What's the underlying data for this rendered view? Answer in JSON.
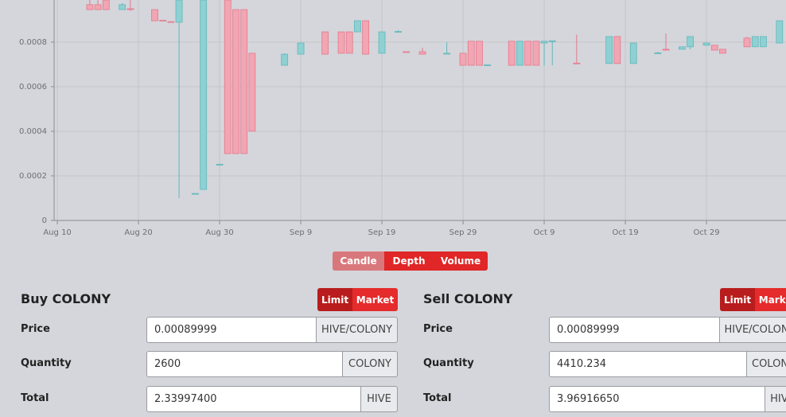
{
  "chart_data": {
    "type": "candlestick",
    "x": [
      4,
      5,
      6,
      8,
      9,
      12,
      13,
      14,
      15,
      17,
      18,
      20,
      21,
      22,
      23,
      24,
      28,
      30,
      33,
      35,
      36,
      37,
      38,
      40,
      42,
      43,
      45,
      48,
      50,
      51,
      52,
      53,
      56,
      57,
      58,
      59,
      60,
      61,
      64,
      68,
      69,
      71,
      74,
      75,
      77,
      78,
      80,
      81,
      82,
      85,
      86,
      87,
      89
    ],
    "open": [
      0.000968,
      0.000968,
      0.000989,
      0.000946,
      0.00095,
      0.000946,
      0.000898,
      0.000892,
      0.000889,
      0.000118,
      0.000139,
      0.00025,
      0.000989,
      0.000946,
      0.000946,
      0.00075,
      0.000696,
      0.000746,
      0.000846,
      0.000846,
      0.000846,
      0.000846,
      0.000896,
      0.00075,
      0.000846,
      0.000757,
      0.000757,
      0.00075,
      0.00075,
      0.000804,
      0.000804,
      0.000696,
      0.000804,
      0.000696,
      0.000804,
      0.000804,
      0.000796,
      0.000804,
      0.000706,
      0.000704,
      0.000825,
      0.000704,
      0.00075,
      0.000768,
      0.000768,
      0.000779,
      0.000786,
      0.000786,
      0.000768,
      0.000818,
      0.000779,
      0.000779,
      0.000796
    ],
    "high": [
      0.000989,
      0.000989,
      0.000989,
      0.000975,
      0.000989,
      0.000946,
      0.000898,
      0.000892,
      0.000989,
      0.000121,
      0.000989,
      0.000252,
      0.000989,
      0.000946,
      0.000946,
      0.00075,
      0.00075,
      0.000796,
      0.000846,
      0.000846,
      0.000846,
      0.000896,
      0.000896,
      0.000846,
      0.000854,
      0.000757,
      0.000775,
      0.0008,
      0.00075,
      0.000804,
      0.000804,
      0.000698,
      0.000804,
      0.000804,
      0.000804,
      0.000804,
      0.000804,
      0.000806,
      0.000834,
      0.000825,
      0.000825,
      0.000796,
      0.000757,
      0.000839,
      0.000779,
      0.000825,
      0.000796,
      0.000786,
      0.000768,
      0.000825,
      0.000825,
      0.000825,
      0.000896
    ],
    "low": [
      0.000946,
      0.000946,
      0.000946,
      0.000946,
      0.00094,
      0.000896,
      0.000896,
      0.000889,
      0.0001,
      0.000118,
      0.000139,
      0.00025,
      0.0003,
      0.0003,
      0.0003,
      0.0004,
      0.000696,
      0.000746,
      0.000746,
      0.00075,
      0.00075,
      0.000846,
      0.000746,
      0.00075,
      0.000846,
      0.000755,
      0.000746,
      0.00075,
      0.000696,
      0.000696,
      0.000696,
      0.000696,
      0.000696,
      0.000696,
      0.000696,
      0.000696,
      0.000696,
      0.000696,
      0.000704,
      0.000704,
      0.000704,
      0.000704,
      0.00075,
      0.000764,
      0.000768,
      0.000768,
      0.000786,
      0.000764,
      0.00075,
      0.000779,
      0.000779,
      0.000779,
      0.000796
    ],
    "close": [
      0.000946,
      0.000946,
      0.000946,
      0.000968,
      0.000946,
      0.000896,
      0.000896,
      0.000889,
      0.000989,
      0.000121,
      0.000989,
      0.000252,
      0.0003,
      0.0003,
      0.0003,
      0.0004,
      0.000746,
      0.000796,
      0.000746,
      0.00075,
      0.00075,
      0.000896,
      0.000746,
      0.000846,
      0.000848,
      0.000755,
      0.000746,
      0.00075,
      0.000696,
      0.000696,
      0.000696,
      0.000698,
      0.000696,
      0.000804,
      0.000696,
      0.000696,
      0.000804,
      0.000806,
      0.000704,
      0.000825,
      0.000704,
      0.000796,
      0.000752,
      0.000764,
      0.000779,
      0.000825,
      0.000796,
      0.000764,
      0.00075,
      0.000779,
      0.000825,
      0.000825,
      0.000896
    ],
    "up_color": "#8fd0d2",
    "up_edge": "#5fb8bc",
    "down_color": "#f2a5b2",
    "down_edge": "#e5788c",
    "xlim": [
      -0.4,
      89.8
    ],
    "ylim": [
      0,
      0.000989
    ],
    "xticks": [
      {
        "value": 0,
        "label": "Aug 10"
      },
      {
        "value": 10,
        "label": "Aug 20"
      },
      {
        "value": 20,
        "label": "Aug 30"
      },
      {
        "value": 30,
        "label": "Sep 9"
      },
      {
        "value": 40,
        "label": "Sep 19"
      },
      {
        "value": 50,
        "label": "Sep 29"
      },
      {
        "value": 60,
        "label": "Oct 9"
      },
      {
        "value": 70,
        "label": "Oct 19"
      },
      {
        "value": 80,
        "label": "Oct 29"
      }
    ],
    "yticks": [
      0,
      0.0002,
      0.0004,
      0.0006,
      0.0008
    ],
    "grid": true
  },
  "chart_tabs": [
    "Candle",
    "Depth",
    "Volume"
  ],
  "buy": {
    "title": "Buy COLONY",
    "order_types": [
      "Limit",
      "Market"
    ],
    "fields": [
      {
        "label": "Price",
        "value": "0.00089999",
        "unit": "HIVE/COLONY"
      },
      {
        "label": "Quantity",
        "value": "2600",
        "unit": "COLONY"
      },
      {
        "label": "Total",
        "value": "2.33997400",
        "unit": "HIVE"
      }
    ]
  },
  "sell": {
    "title": "Sell COLONY",
    "order_types": [
      "Limit",
      "Market"
    ],
    "fields": [
      {
        "label": "Price",
        "value": "0.00089999",
        "unit": "HIVE/COLONY"
      },
      {
        "label": "Quantity",
        "value": "4410.234",
        "unit": "COLONY"
      },
      {
        "label": "Total",
        "value": "3.96916650",
        "unit": "HIVE"
      }
    ]
  }
}
